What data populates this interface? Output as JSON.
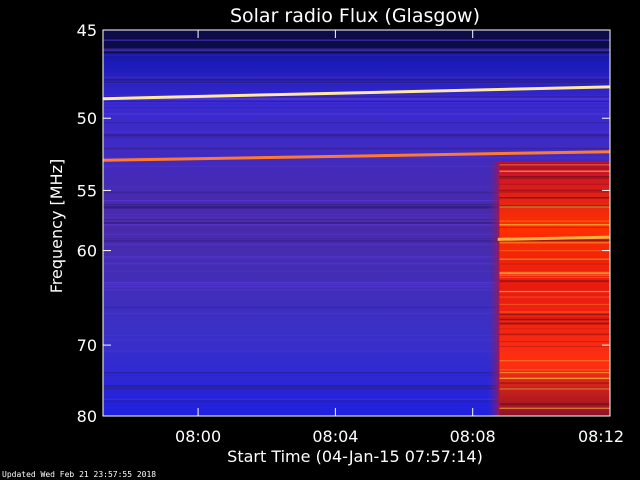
{
  "chart_data": {
    "type": "heatmap",
    "title": "Solar radio Flux (Glasgow)",
    "xlabel": "Start Time (04-Jan-15 07:57:14)",
    "ylabel": "Frequency [MHz]",
    "x_ticks": [
      "08:00",
      "08:04",
      "08:08",
      "08:12"
    ],
    "x_tick_minutes": [
      2.77,
      6.77,
      10.77,
      14.77
    ],
    "x_range_minutes": [
      0,
      14.77
    ],
    "y_ticks": [
      45,
      50,
      55,
      60,
      70,
      80
    ],
    "y_range": [
      45,
      80
    ],
    "y_scale": "reciprocal",
    "grid": false,
    "legend": "none",
    "colormap": [
      "#0a0a40",
      "#1a1a9a",
      "#3a3ae8",
      "#5a2aa0",
      "#b0102a",
      "#ff2a00",
      "#ffe060",
      "#ffffff"
    ],
    "burst_start_minute": 11.55,
    "emission_lines": [
      {
        "freq_start": 48.8,
        "freq_end": 48.1,
        "color": "#ffe8a0"
      },
      {
        "freq_start": 52.8,
        "freq_end": 52.2,
        "color": "#ff7a30"
      },
      {
        "freq_start": 59.0,
        "freq_end": 58.8,
        "color": "#ffb040",
        "from_minute": 11.5
      }
    ]
  },
  "footer": "Updated Wed Feb 21 23:57:55 2018"
}
